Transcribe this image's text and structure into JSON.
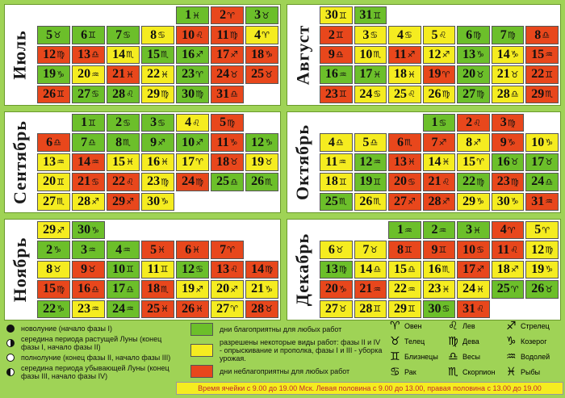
{
  "months": [
    {
      "name": "Июль",
      "cells": [
        [
          "e",
          "",
          ""
        ],
        [
          "e",
          "",
          ""
        ],
        [
          "e",
          "",
          ""
        ],
        [
          "e",
          "",
          ""
        ],
        [
          "g",
          "1",
          "♓"
        ],
        [
          "r",
          "2",
          "♈"
        ],
        [
          "g",
          "3",
          "♉"
        ],
        [
          "g",
          "5",
          "♉"
        ],
        [
          "g",
          "6",
          "♊"
        ],
        [
          "g",
          "7",
          "♋"
        ],
        [
          "y",
          "8",
          "♋"
        ],
        [
          "r",
          "10",
          "♌"
        ],
        [
          "r",
          "11",
          "♍"
        ],
        [
          "y",
          "4",
          "♈"
        ],
        [
          "r",
          "12",
          "♍"
        ],
        [
          "r",
          "13",
          "♎"
        ],
        [
          "y",
          "14",
          "♏"
        ],
        [
          "g",
          "15",
          "♏"
        ],
        [
          "g",
          "16",
          "♐"
        ],
        [
          "r",
          "17",
          "♐"
        ],
        [
          "r",
          "18",
          "♑"
        ],
        [
          "g",
          "19",
          "♑"
        ],
        [
          "y",
          "20",
          "♒"
        ],
        [
          "r",
          "21",
          "♓"
        ],
        [
          "y",
          "22",
          "♓"
        ],
        [
          "g",
          "23",
          "♈"
        ],
        [
          "r",
          "24",
          "♉"
        ],
        [
          "r",
          "25",
          "♉"
        ],
        [
          "r",
          "26",
          "♊"
        ],
        [
          "g",
          "27",
          "♋"
        ],
        [
          "g",
          "28",
          "♌"
        ],
        [
          "y",
          "29",
          "♍"
        ],
        [
          "g",
          "30",
          "♍"
        ],
        [
          "r",
          "31",
          "♎"
        ],
        [
          "e",
          "",
          ""
        ]
      ]
    },
    {
      "name": "Август",
      "cells": [
        [
          "y",
          "30",
          "♊"
        ],
        [
          "g",
          "31",
          "♊"
        ],
        [
          "e",
          "",
          ""
        ],
        [
          "e",
          "",
          ""
        ],
        [
          "e",
          "",
          ""
        ],
        [
          "e",
          "",
          ""
        ],
        [
          "e",
          "",
          ""
        ],
        [
          "r",
          "2",
          "♊"
        ],
        [
          "y",
          "3",
          "♋"
        ],
        [
          "y",
          "4",
          "♋"
        ],
        [
          "y",
          "5",
          "♌"
        ],
        [
          "g",
          "6",
          "♍"
        ],
        [
          "g",
          "7",
          "♍"
        ],
        [
          "r",
          "8",
          "♎"
        ],
        [
          "r",
          "9",
          "♎"
        ],
        [
          "y",
          "10",
          "♏"
        ],
        [
          "r",
          "11",
          "♐"
        ],
        [
          "y",
          "12",
          "♐"
        ],
        [
          "g",
          "13",
          "♑"
        ],
        [
          "y",
          "14",
          "♑"
        ],
        [
          "r",
          "15",
          "♒"
        ],
        [
          "g",
          "16",
          "♒"
        ],
        [
          "g",
          "17",
          "♓"
        ],
        [
          "y",
          "18",
          "♓"
        ],
        [
          "r",
          "19",
          "♈"
        ],
        [
          "g",
          "20",
          "♉"
        ],
        [
          "y",
          "21",
          "♉"
        ],
        [
          "r",
          "22",
          "♊"
        ],
        [
          "r",
          "23",
          "♊"
        ],
        [
          "y",
          "24",
          "♋"
        ],
        [
          "y",
          "25",
          "♌"
        ],
        [
          "y",
          "26",
          "♍"
        ],
        [
          "g",
          "27",
          "♍"
        ],
        [
          "y",
          "28",
          "♎"
        ],
        [
          "r",
          "29",
          "♏"
        ]
      ]
    },
    {
      "name": "Сентябрь",
      "cells": [
        [
          "e",
          "",
          ""
        ],
        [
          "g",
          "1",
          "♊"
        ],
        [
          "g",
          "2",
          "♋"
        ],
        [
          "g",
          "3",
          "♋"
        ],
        [
          "y",
          "4",
          "♌"
        ],
        [
          "r",
          "5",
          "♍"
        ],
        [
          "e",
          "",
          ""
        ],
        [
          "r",
          "6",
          "♎"
        ],
        [
          "g",
          "7",
          "♎"
        ],
        [
          "g",
          "8",
          "♏"
        ],
        [
          "g",
          "9",
          "♐"
        ],
        [
          "g",
          "10",
          "♐"
        ],
        [
          "r",
          "11",
          "♑"
        ],
        [
          "g",
          "12",
          "♑"
        ],
        [
          "y",
          "13",
          "♒"
        ],
        [
          "r",
          "14",
          "♒"
        ],
        [
          "y",
          "15",
          "♓"
        ],
        [
          "y",
          "16",
          "♓"
        ],
        [
          "y",
          "17",
          "♈"
        ],
        [
          "r",
          "18",
          "♉"
        ],
        [
          "y",
          "19",
          "♉"
        ],
        [
          "y",
          "20",
          "♊"
        ],
        [
          "r",
          "21",
          "♋"
        ],
        [
          "r",
          "22",
          "♌"
        ],
        [
          "y",
          "23",
          "♍"
        ],
        [
          "r",
          "24",
          "♍"
        ],
        [
          "g",
          "25",
          "♎"
        ],
        [
          "g",
          "26",
          "♏"
        ],
        [
          "y",
          "27",
          "♏"
        ],
        [
          "y",
          "28",
          "♐"
        ],
        [
          "r",
          "29",
          "♐"
        ],
        [
          "y",
          "30",
          "♑"
        ],
        [
          "e",
          "",
          ""
        ],
        [
          "e",
          "",
          ""
        ],
        [
          "e",
          "",
          ""
        ]
      ]
    },
    {
      "name": "Октябрь",
      "cells": [
        [
          "e",
          "",
          ""
        ],
        [
          "e",
          "",
          ""
        ],
        [
          "e",
          "",
          ""
        ],
        [
          "g",
          "1",
          "♋"
        ],
        [
          "r",
          "2",
          "♌"
        ],
        [
          "r",
          "3",
          "♍"
        ],
        [
          "e",
          "",
          ""
        ],
        [
          "y",
          "4",
          "♎"
        ],
        [
          "y",
          "5",
          "♎"
        ],
        [
          "r",
          "6",
          "♏"
        ],
        [
          "r",
          "7",
          "♐"
        ],
        [
          "y",
          "8",
          "♐"
        ],
        [
          "r",
          "9",
          "♑"
        ],
        [
          "y",
          "10",
          "♑"
        ],
        [
          "y",
          "11",
          "♒"
        ],
        [
          "g",
          "12",
          "♒"
        ],
        [
          "r",
          "13",
          "♓"
        ],
        [
          "y",
          "14",
          "♓"
        ],
        [
          "y",
          "15",
          "♈"
        ],
        [
          "g",
          "16",
          "♉"
        ],
        [
          "g",
          "17",
          "♉"
        ],
        [
          "y",
          "18",
          "♊"
        ],
        [
          "g",
          "19",
          "♊"
        ],
        [
          "r",
          "20",
          "♋"
        ],
        [
          "r",
          "21",
          "♌"
        ],
        [
          "g",
          "22",
          "♍"
        ],
        [
          "r",
          "23",
          "♍"
        ],
        [
          "g",
          "24",
          "♎"
        ],
        [
          "g",
          "25",
          "♏"
        ],
        [
          "y",
          "26",
          "♏"
        ],
        [
          "r",
          "27",
          "♐"
        ],
        [
          "r",
          "28",
          "♐"
        ],
        [
          "y",
          "29",
          "♑"
        ],
        [
          "y",
          "30",
          "♑"
        ],
        [
          "r",
          "31",
          "♒"
        ]
      ]
    },
    {
      "name": "Ноябрь",
      "cells": [
        [
          "y",
          "29",
          "♐"
        ],
        [
          "g",
          "30",
          "♑"
        ],
        [
          "e",
          "",
          ""
        ],
        [
          "e",
          "",
          ""
        ],
        [
          "e",
          "",
          ""
        ],
        [
          "e",
          "",
          ""
        ],
        [
          "e",
          "",
          ""
        ],
        [
          "g",
          "2",
          "♑"
        ],
        [
          "g",
          "3",
          "♒"
        ],
        [
          "g",
          "4",
          "♒"
        ],
        [
          "r",
          "5",
          "♓"
        ],
        [
          "r",
          "6",
          "♓"
        ],
        [
          "r",
          "7",
          "♈"
        ],
        [
          "e",
          "",
          ""
        ],
        [
          "y",
          "8",
          "♉"
        ],
        [
          "r",
          "9",
          "♉"
        ],
        [
          "g",
          "10",
          "♊"
        ],
        [
          "y",
          "11",
          "♊"
        ],
        [
          "g",
          "12",
          "♋"
        ],
        [
          "r",
          "13",
          "♌"
        ],
        [
          "r",
          "14",
          "♍"
        ],
        [
          "r",
          "15",
          "♍"
        ],
        [
          "r",
          "16",
          "♎"
        ],
        [
          "g",
          "17",
          "♎"
        ],
        [
          "r",
          "18",
          "♏"
        ],
        [
          "y",
          "19",
          "♐"
        ],
        [
          "y",
          "20",
          "♐"
        ],
        [
          "y",
          "21",
          "♑"
        ],
        [
          "g",
          "22",
          "♑"
        ],
        [
          "y",
          "23",
          "♒"
        ],
        [
          "g",
          "24",
          "♒"
        ],
        [
          "r",
          "25",
          "♓"
        ],
        [
          "r",
          "26",
          "♓"
        ],
        [
          "y",
          "27",
          "♈"
        ],
        [
          "r",
          "28",
          "♉"
        ]
      ]
    },
    {
      "name": "Декабрь",
      "cells": [
        [
          "e",
          "",
          ""
        ],
        [
          "e",
          "",
          ""
        ],
        [
          "g",
          "1",
          "♒"
        ],
        [
          "g",
          "2",
          "♒"
        ],
        [
          "g",
          "3",
          "♓"
        ],
        [
          "r",
          "4",
          "♈"
        ],
        [
          "y",
          "5",
          "♈"
        ],
        [
          "y",
          "6",
          "♉"
        ],
        [
          "y",
          "7",
          "♉"
        ],
        [
          "r",
          "8",
          "♊"
        ],
        [
          "r",
          "9",
          "♊"
        ],
        [
          "r",
          "10",
          "♋"
        ],
        [
          "r",
          "11",
          "♌"
        ],
        [
          "y",
          "12",
          "♍"
        ],
        [
          "g",
          "13",
          "♍"
        ],
        [
          "y",
          "14",
          "♎"
        ],
        [
          "y",
          "15",
          "♎"
        ],
        [
          "y",
          "16",
          "♏"
        ],
        [
          "r",
          "17",
          "♐"
        ],
        [
          "y",
          "18",
          "♐"
        ],
        [
          "y",
          "19",
          "♑"
        ],
        [
          "r",
          "20",
          "♑"
        ],
        [
          "r",
          "21",
          "♒"
        ],
        [
          "y",
          "22",
          "♒"
        ],
        [
          "y",
          "23",
          "♓"
        ],
        [
          "y",
          "24",
          "♓"
        ],
        [
          "g",
          "25",
          "♈"
        ],
        [
          "g",
          "26",
          "♉"
        ],
        [
          "y",
          "27",
          "♉"
        ],
        [
          "y",
          "28",
          "♊"
        ],
        [
          "y",
          "29",
          "♊"
        ],
        [
          "g",
          "30",
          "♋"
        ],
        [
          "r",
          "31",
          "♌"
        ],
        [
          "e",
          "",
          ""
        ],
        [
          "e",
          "",
          ""
        ]
      ]
    }
  ],
  "legend_moon": [
    {
      "icon": "new",
      "text": "новолуние (начало фазы I)"
    },
    {
      "icon": "first",
      "text": "середина периода растущей Луны (конец фазы I, начало фазы II)"
    },
    {
      "icon": "full",
      "text": "полнолуние (конец фазы II, начало фазы III)"
    },
    {
      "icon": "third",
      "text": "середина периода убывающей Луны (конец фазы III, начало фазы IV)"
    }
  ],
  "legend_days": [
    {
      "color": "#6cbf2a",
      "text": "дни благоприятны для любых работ"
    },
    {
      "color": "#f5ec20",
      "text": "разрешены некоторые виды работ: фазы II и IV - опрыскивание и прополка, фазы I и III - уборка урожая."
    },
    {
      "color": "#e8471c",
      "text": "дни неблагоприятны для любых работ"
    }
  ],
  "zodiac": [
    {
      "sym": "♈",
      "name": "Овен"
    },
    {
      "sym": "♌",
      "name": "Лев"
    },
    {
      "sym": "♐",
      "name": "Стрелец"
    },
    {
      "sym": "♉",
      "name": "Телец"
    },
    {
      "sym": "♍",
      "name": "Дева"
    },
    {
      "sym": "♑",
      "name": "Козерог"
    },
    {
      "sym": "♊",
      "name": "Близнецы"
    },
    {
      "sym": "♎",
      "name": "Весы"
    },
    {
      "sym": "♒",
      "name": "Водолей"
    },
    {
      "sym": "♋",
      "name": "Рак"
    },
    {
      "sym": "♏",
      "name": "Скорпион"
    },
    {
      "sym": "♓",
      "name": "Рыбы"
    }
  ],
  "footer": "Время ячейки с 9.00 до 19.00 Мск. Левая половина с 9.00 до 13.00, правая половина с 13.00 до 19.00"
}
